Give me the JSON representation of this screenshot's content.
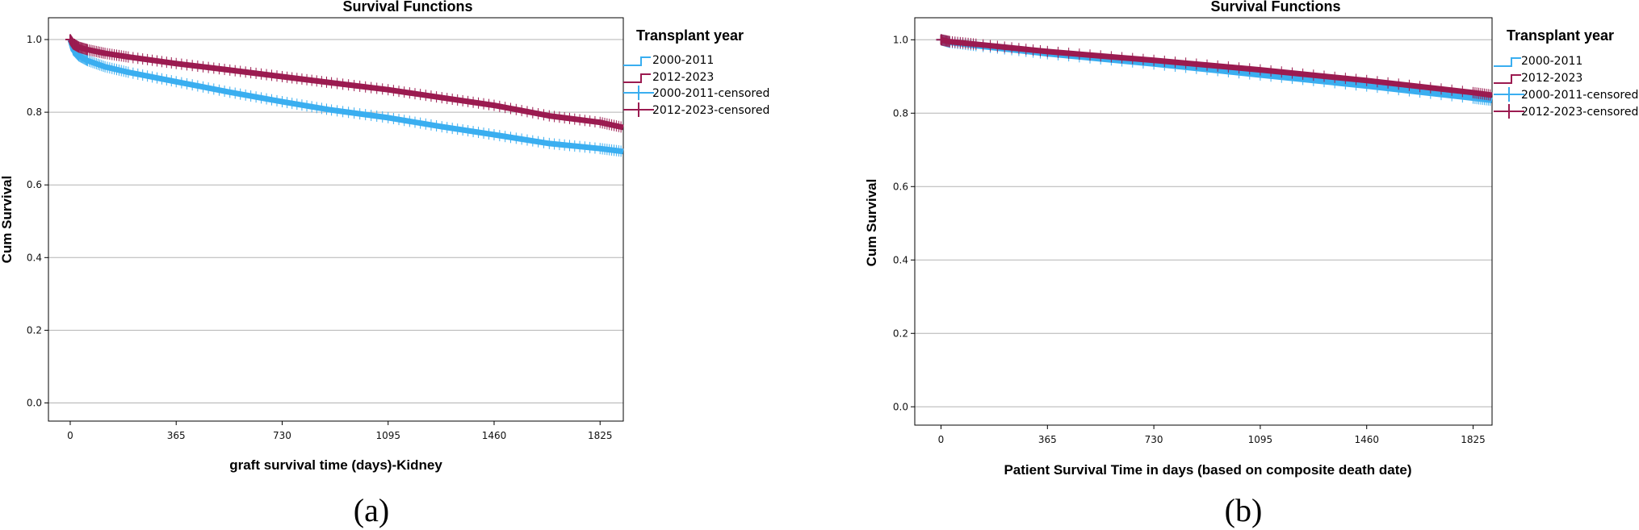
{
  "figure": {
    "captions": [
      "(a)",
      "(b)"
    ]
  },
  "legend": {
    "title": "Transplant year",
    "entries": [
      "2000-2011",
      "2012-2023",
      "2000-2011-censored",
      "2012-2023-censored"
    ],
    "colors": [
      "#3AAEF0",
      "#9B1B50",
      "#3AAEF0",
      "#9B1B50"
    ]
  },
  "chart_data": [
    {
      "type": "line",
      "title": "Survival Functions",
      "xlabel": "graft survival time (days)-Kidney",
      "ylabel": "Cum Survival",
      "xlim": [
        -75,
        1905
      ],
      "ylim": [
        -0.05,
        1.06
      ],
      "xticks": [
        0,
        365,
        730,
        1095,
        1460,
        1825
      ],
      "yticks": [
        0.0,
        0.2,
        0.4,
        0.6,
        0.8,
        1.0
      ],
      "ytick_labels": [
        "0.0",
        "0.2",
        "0.4",
        "0.6",
        "0.8",
        "1.0"
      ],
      "grid": "horizontal",
      "series": [
        {
          "name": "2000-2011",
          "color": "#3AAEF0",
          "x": [
            0,
            10,
            30,
            60,
            120,
            200,
            365,
            550,
            730,
            900,
            1095,
            1280,
            1460,
            1650,
            1825,
            1905
          ],
          "y": [
            1.0,
            0.972,
            0.955,
            0.942,
            0.925,
            0.91,
            0.884,
            0.855,
            0.829,
            0.806,
            0.785,
            0.76,
            0.738,
            0.714,
            0.7,
            0.692
          ]
        },
        {
          "name": "2012-2023",
          "color": "#9B1B50",
          "x": [
            0,
            10,
            30,
            60,
            120,
            200,
            365,
            550,
            730,
            900,
            1095,
            1280,
            1460,
            1650,
            1825,
            1905
          ],
          "y": [
            1.0,
            0.988,
            0.979,
            0.972,
            0.962,
            0.952,
            0.934,
            0.916,
            0.898,
            0.881,
            0.862,
            0.84,
            0.819,
            0.79,
            0.772,
            0.758
          ]
        }
      ]
    },
    {
      "type": "line",
      "title": "Survival Functions",
      "xlabel": "Patient Survival Time in days (based on composite death date)",
      "ylabel": "Cum Survival",
      "xlim": [
        -90,
        1890
      ],
      "ylim": [
        -0.05,
        1.06
      ],
      "xticks": [
        0,
        365,
        730,
        1095,
        1460,
        1825
      ],
      "yticks": [
        0.0,
        0.2,
        0.4,
        0.6,
        0.8,
        1.0
      ],
      "ytick_labels": [
        "0.0",
        "0.2",
        "0.4",
        "0.6",
        "0.8",
        "1.0"
      ],
      "grid": "horizontal",
      "series": [
        {
          "name": "2000-2011",
          "color": "#3AAEF0",
          "x": [
            0,
            30,
            120,
            365,
            730,
            1095,
            1460,
            1825,
            1890
          ],
          "y": [
            1.0,
            0.993,
            0.984,
            0.962,
            0.934,
            0.904,
            0.874,
            0.841,
            0.835
          ]
        },
        {
          "name": "2012-2023",
          "color": "#9B1B50",
          "x": [
            0,
            30,
            120,
            365,
            730,
            1095,
            1460,
            1825,
            1890
          ],
          "y": [
            1.0,
            0.995,
            0.988,
            0.968,
            0.944,
            0.918,
            0.889,
            0.856,
            0.849
          ]
        }
      ]
    }
  ]
}
